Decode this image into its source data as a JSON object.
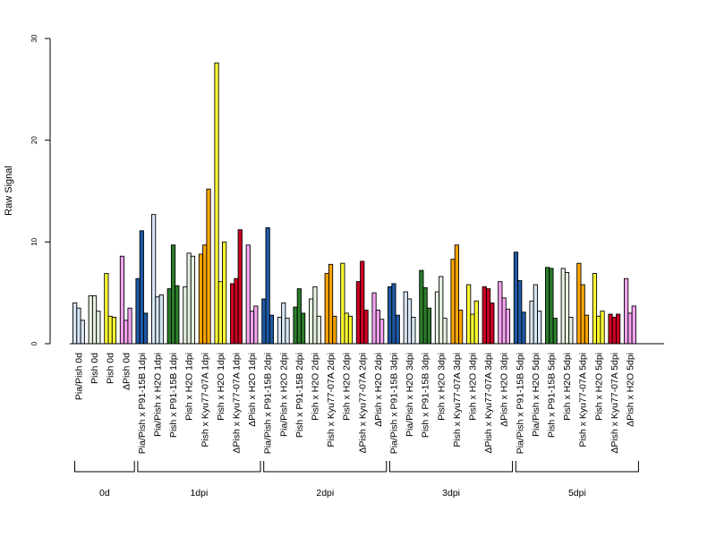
{
  "chart_data": {
    "type": "bar",
    "title": "",
    "xlabel": "",
    "ylabel": "Raw Signal",
    "ylim": [
      0,
      30
    ],
    "yticks": [
      0,
      10,
      20,
      30
    ],
    "grid": false,
    "categories": [
      "Pia/Pish 0d",
      "Pish 0d",
      "Pish 0d",
      "ΔPish 0d",
      "Pia/Pish x P91-15B 1dpi",
      "Pia/Pish x H2O 1dpi",
      "Pish x P91-15B 1dpi",
      "Pish x H2O 1dpi",
      "Pish x Kyu77-07A 1dpi",
      "Pish x H2O 1dpi",
      "ΔPish x Kyu77-07A 1dpi",
      "ΔPish x H2O 1dpi",
      "Pia/Pish x P91-15B 2dpi",
      "Pia/Pish x H2O 2dpi",
      "Pish x P91-15B 2dpi",
      "Pish x H2O 2dpi",
      "Pish x Kyu77-07A 2dpi",
      "Pish x H2O 2dpi",
      "ΔPish x Kyu77-07A 2dpi",
      "ΔPish x H2O 2dpi",
      "Pia/Pish x P91-15B 3dpi",
      "Pia/Pish x H2O 3dpi",
      "Pish x P91-15B 3dpi",
      "Pish x H2O 3dpi",
      "Pish x Kyu77-07A 3dpi",
      "Pish x H2O 3dpi",
      "ΔPish x Kyu77-07A 3dpi",
      "ΔPish x H2O 3dpi",
      "Pia/Pish x P91-15B 5dpi",
      "Pia/Pish x H2O 5dpi",
      "Pish x P91-15B 5dpi",
      "Pish x H2O 5dpi",
      "Pish x Kyu77-07A 5dpi",
      "Pish x H2O 5dpi",
      "ΔPish x Kyu77-07A 5dpi",
      "ΔPish x H2O 5dpi"
    ],
    "bar_colors": [
      "#d7e6f4",
      "#e6f2e0",
      "#ffff33",
      "#f5a3f0",
      "#1f5aa6",
      "#d7e6f4",
      "#2a7d2a",
      "#e6f2e0",
      "#ffa500",
      "#ffff33",
      "#cc0022",
      "#f5a3f0",
      "#1f5aa6",
      "#d7e6f4",
      "#2a7d2a",
      "#e6f2e0",
      "#ffa500",
      "#ffff33",
      "#cc0022",
      "#f5a3f0",
      "#1f5aa6",
      "#d7e6f4",
      "#2a7d2a",
      "#e6f2e0",
      "#ffa500",
      "#ffff33",
      "#cc0022",
      "#f5a3f0",
      "#1f5aa6",
      "#d7e6f4",
      "#2a7d2a",
      "#e6f2e0",
      "#ffa500",
      "#ffff33",
      "#cc0022",
      "#f5a3f0"
    ],
    "values": [
      [
        4.0,
        3.5,
        2.3
      ],
      [
        4.7,
        4.7,
        3.2
      ],
      [
        6.9,
        2.7,
        2.6
      ],
      [
        8.6,
        2.3,
        3.5
      ],
      [
        6.4,
        11.1,
        3.0
      ],
      [
        12.7,
        4.6,
        4.8
      ],
      [
        5.4,
        9.7,
        5.7
      ],
      [
        5.6,
        8.9,
        8.6
      ],
      [
        8.8,
        9.7,
        15.2
      ],
      [
        27.6,
        6.1,
        10.0
      ],
      [
        5.9,
        6.4,
        11.2
      ],
      [
        9.7,
        3.2,
        3.7
      ],
      [
        4.4,
        11.4,
        2.8
      ],
      [
        2.6,
        4.0,
        2.5
      ],
      [
        3.6,
        5.4,
        3.0
      ],
      [
        4.4,
        5.6,
        2.7
      ],
      [
        6.9,
        7.8,
        2.7
      ],
      [
        7.9,
        3.0,
        2.7
      ],
      [
        6.1,
        8.1,
        3.3
      ],
      [
        5.0,
        3.3,
        2.4
      ],
      [
        5.6,
        5.9,
        2.8
      ],
      [
        5.1,
        4.4,
        2.6
      ],
      [
        7.2,
        5.5,
        3.5
      ],
      [
        5.1,
        6.6,
        2.5
      ],
      [
        8.3,
        9.7,
        3.3
      ],
      [
        5.8,
        2.9,
        4.2
      ],
      [
        5.6,
        5.4,
        4.0
      ],
      [
        6.1,
        4.5,
        3.4
      ],
      [
        9.0,
        6.2,
        3.1
      ],
      [
        4.2,
        5.8,
        3.2
      ],
      [
        7.5,
        7.4,
        2.5
      ],
      [
        7.4,
        7.0,
        2.6
      ],
      [
        7.9,
        5.8,
        2.8
      ],
      [
        6.9,
        2.7,
        3.2
      ],
      [
        2.9,
        2.6,
        2.9
      ],
      [
        6.4,
        3.0,
        3.7
      ]
    ],
    "groups": [
      {
        "label": "0d",
        "start": 0,
        "end": 3
      },
      {
        "label": "1dpi",
        "start": 4,
        "end": 11
      },
      {
        "label": "2dpi",
        "start": 12,
        "end": 19
      },
      {
        "label": "3dpi",
        "start": 20,
        "end": 27
      },
      {
        "label": "5dpi",
        "start": 28,
        "end": 35
      }
    ]
  }
}
